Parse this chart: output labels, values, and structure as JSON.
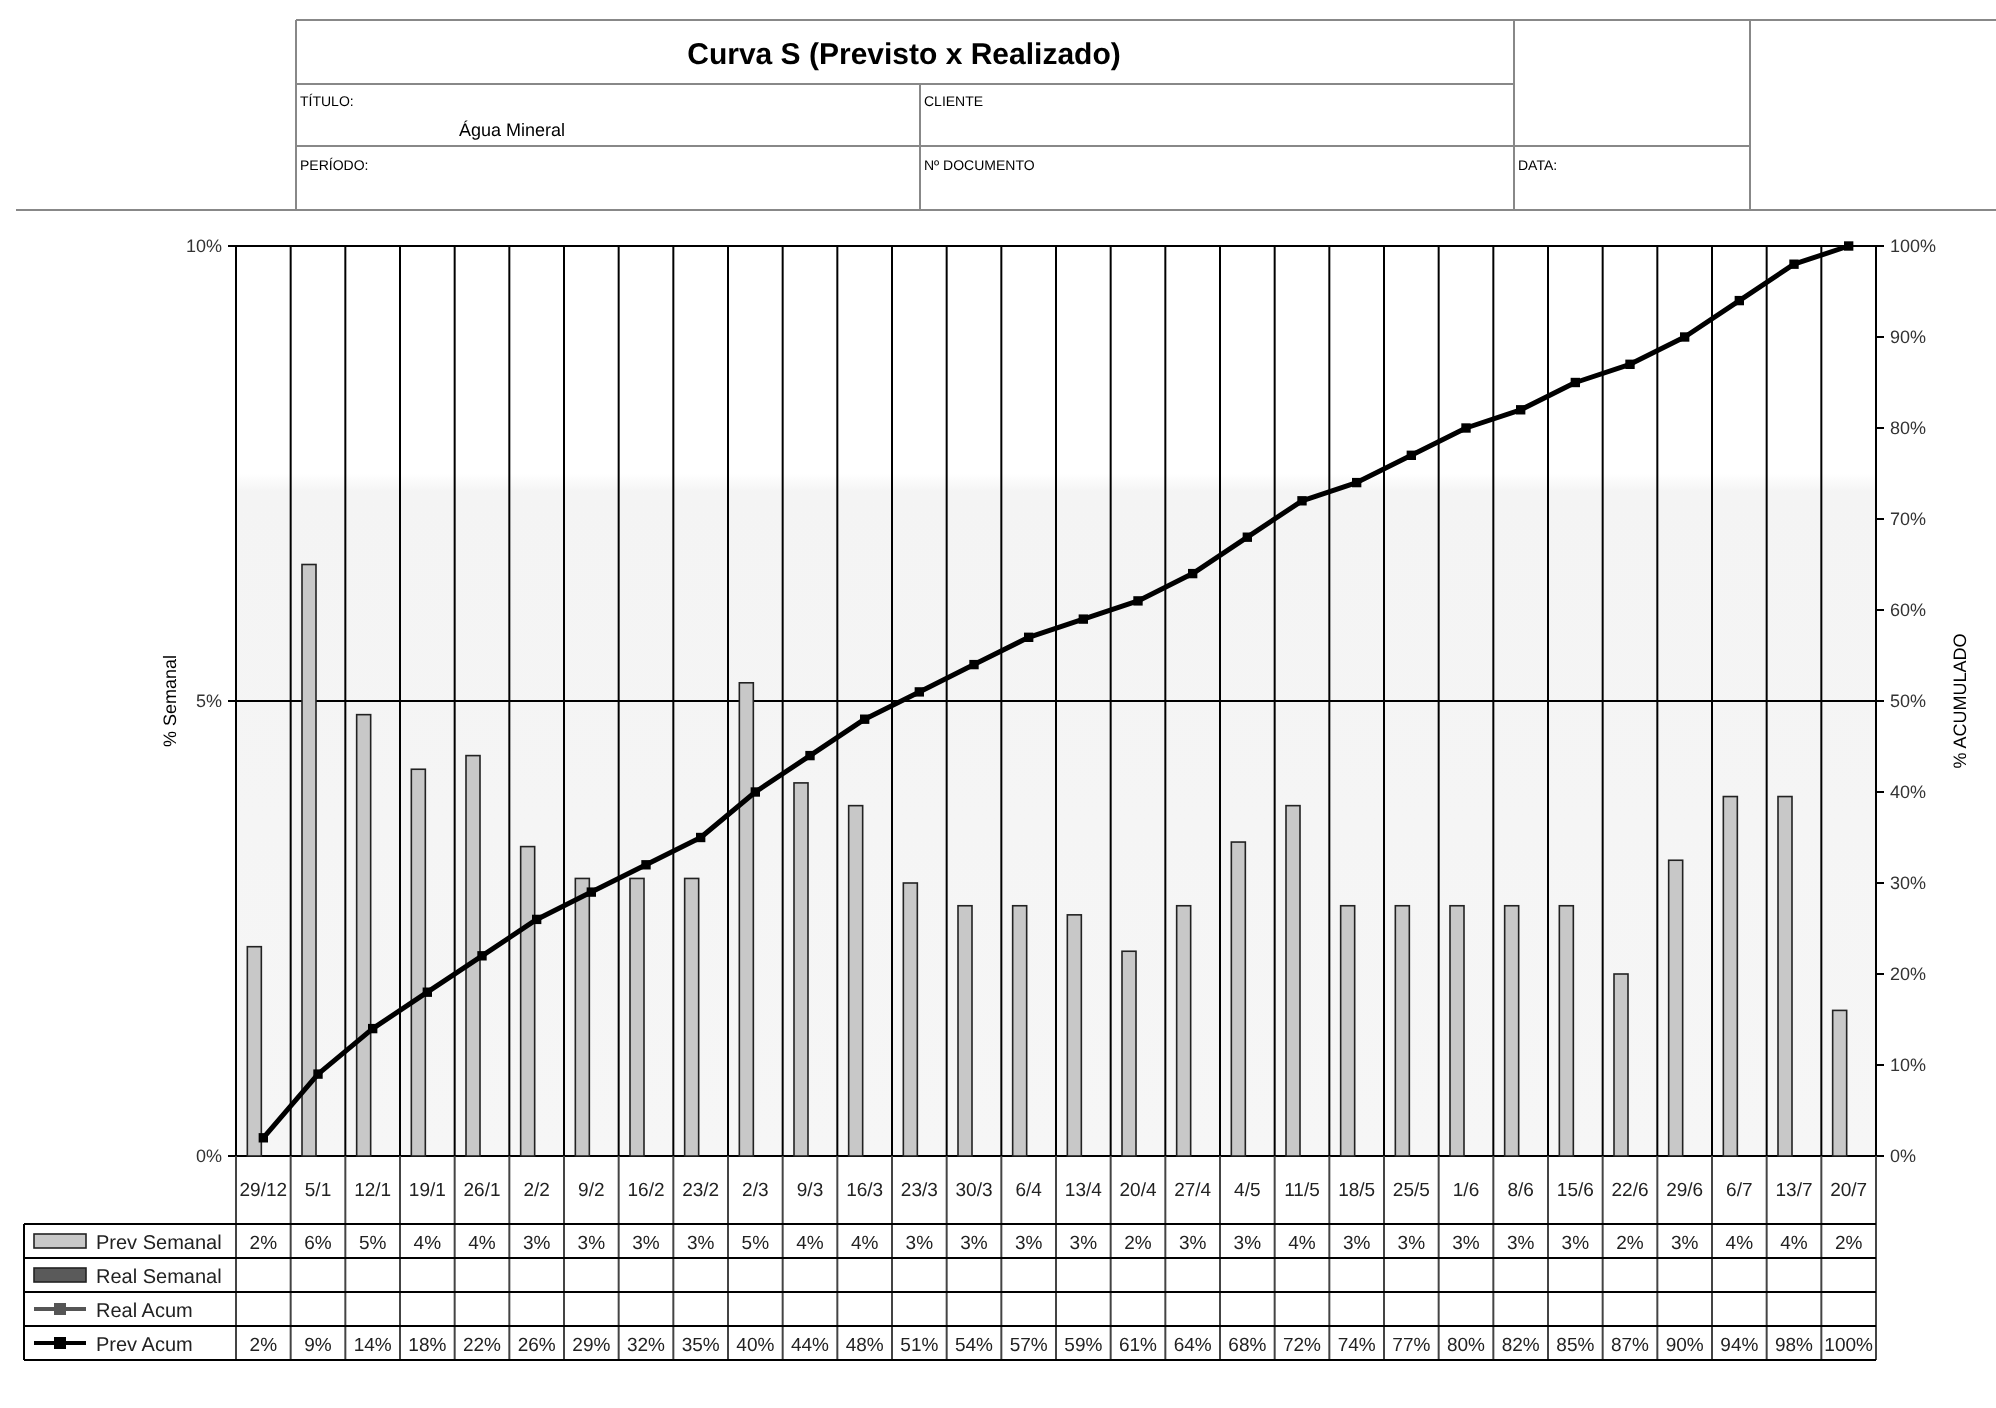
{
  "chart_data": {
    "type": "bar",
    "title": "Curva S (Previsto x Realizado)",
    "annotations": [
      "TÍTULO:",
      "Água Mineral",
      "CLIENTE",
      "PERÍODO:",
      "Nº  DOCUMENTO",
      "DATA:"
    ],
    "categories": [
      "29/12",
      "5/1",
      "12/1",
      "19/1",
      "26/1",
      "2/2",
      "9/2",
      "16/2",
      "23/2",
      "2/3",
      "9/3",
      "16/3",
      "23/3",
      "30/3",
      "6/4",
      "13/4",
      "20/4",
      "27/4",
      "4/5",
      "11/5",
      "18/5",
      "25/5",
      "1/6",
      "8/6",
      "15/6",
      "22/6",
      "29/6",
      "6/7",
      "13/7",
      "20/7"
    ],
    "ylabel": "% Semanal",
    "y2label": "% ACUMULADO",
    "ylim": [
      0,
      10
    ],
    "yticks": [
      {
        "value": 0,
        "label": "0%"
      },
      {
        "value": 5,
        "label": "5%"
      },
      {
        "value": 10,
        "label": "10%"
      }
    ],
    "y2lim": [
      0,
      100
    ],
    "y2ticks": [
      {
        "value": 0,
        "label": "0%"
      },
      {
        "value": 10,
        "label": "10%"
      },
      {
        "value": 20,
        "label": "20%"
      },
      {
        "value": 30,
        "label": "30%"
      },
      {
        "value": 40,
        "label": "40%"
      },
      {
        "value": 50,
        "label": "50%"
      },
      {
        "value": 60,
        "label": "60%"
      },
      {
        "value": 70,
        "label": "70%"
      },
      {
        "value": 80,
        "label": "80%"
      },
      {
        "value": 90,
        "label": "90%"
      },
      {
        "value": 100,
        "label": "100%"
      }
    ],
    "grid": true,
    "legend": "bottom",
    "series": [
      {
        "name": "Prev Semanal",
        "color": "#c8c8c8",
        "values": [
          2.3,
          6.5,
          4.85,
          4.25,
          4.4,
          3.4,
          3.05,
          3.05,
          3.05,
          5.2,
          4.1,
          3.85,
          3.0,
          2.75,
          2.75,
          2.65,
          2.25,
          2.75,
          3.45,
          3.85,
          2.75,
          2.75,
          2.75,
          2.75,
          2.75,
          2.0,
          3.25,
          3.95,
          3.95,
          1.6
        ],
        "value_labels": [
          "2%",
          "6%",
          "5%",
          "4%",
          "4%",
          "3%",
          "3%",
          "3%",
          "3%",
          "5%",
          "4%",
          "4%",
          "3%",
          "3%",
          "3%",
          "3%",
          "2%",
          "3%",
          "3%",
          "4%",
          "3%",
          "3%",
          "3%",
          "3%",
          "3%",
          "2%",
          "3%",
          "4%",
          "4%",
          "2%"
        ]
      },
      {
        "name": "Real Semanal",
        "color": "#5a5a5a",
        "values": [
          null,
          null,
          null,
          null,
          null,
          null,
          null,
          null,
          null,
          null,
          null,
          null,
          null,
          null,
          null,
          null,
          null,
          null,
          null,
          null,
          null,
          null,
          null,
          null,
          null,
          null,
          null,
          null,
          null,
          null
        ]
      },
      {
        "name": "Real Acum",
        "type": "line",
        "axis": "y2",
        "marker": "square",
        "color": "#555555",
        "values": [
          null,
          null,
          null,
          null,
          null,
          null,
          null,
          null,
          null,
          null,
          null,
          null,
          null,
          null,
          null,
          null,
          null,
          null,
          null,
          null,
          null,
          null,
          null,
          null,
          null,
          null,
          null,
          null,
          null,
          null
        ]
      },
      {
        "name": "Prev Acum",
        "type": "line",
        "axis": "y2",
        "marker": "square",
        "color": "#000000",
        "values": [
          2,
          9,
          14,
          18,
          22,
          26,
          29,
          32,
          35,
          40,
          44,
          48,
          51,
          54,
          57,
          59,
          61,
          64,
          68,
          72,
          74,
          77,
          80,
          82,
          85,
          87,
          90,
          94,
          98,
          100
        ],
        "value_labels": [
          "2%",
          "9%",
          "14%",
          "18%",
          "22%",
          "26%",
          "29%",
          "32%",
          "35%",
          "40%",
          "44%",
          "48%",
          "51%",
          "54%",
          "57%",
          "59%",
          "61%",
          "64%",
          "68%",
          "72%",
          "74%",
          "77%",
          "80%",
          "82%",
          "85%",
          "87%",
          "90%",
          "94%",
          "98%",
          "100%"
        ]
      }
    ]
  }
}
